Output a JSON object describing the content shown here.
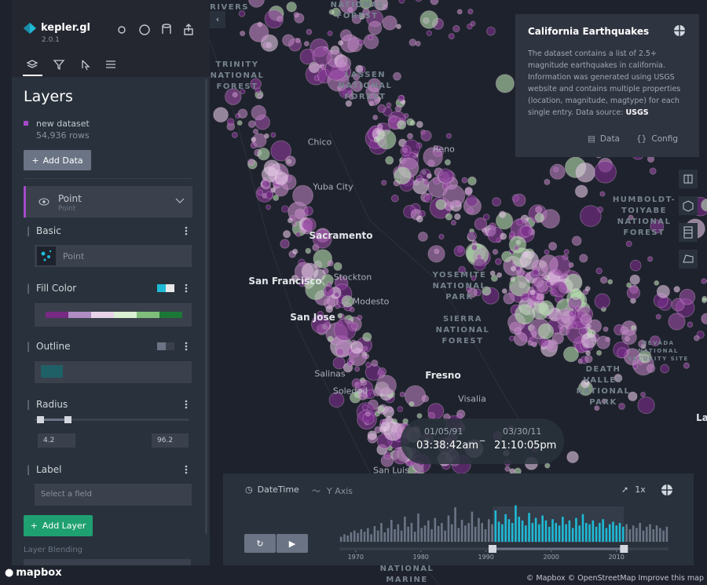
{
  "map": {
    "labels": [
      "SIX RIVERS",
      "NATIONAL FOREST",
      "TRINITY NATIONAL FOREST",
      "LASSEN NATIONAL FOREST",
      "Chico",
      "Yuba City",
      "Sacramento",
      "San Francisco",
      "Stockton",
      "Modesto",
      "YOSEMITE NATIONAL PARK",
      "SIERRA NATIONAL FOREST",
      "Fresno",
      "Visalia",
      "HUMBOLDT-TOIYABE NATIONAL FOREST",
      "NEVADA NATIONAL SECURITY SITE",
      "DEATH VALLEY NATIONAL PARK",
      "Salinas",
      "Soledad",
      "San Jose",
      "San Luis",
      "Reno",
      "NATIONAL MARINE",
      "Las Vegas"
    ]
  },
  "sidebar": {
    "brand": "kepler.gl",
    "version": "2.0.1",
    "title": "Layers",
    "dataset": {
      "name": "new dataset",
      "rows": "54,936 rows"
    },
    "add_data": "Add Data",
    "layer": {
      "name": "Point",
      "type": "Point",
      "basic": "Basic",
      "basic_value": "Point",
      "fill_color": "Fill Color",
      "outline": "Outline",
      "radius": "Radius",
      "radius_min": 4.2,
      "radius_max": 96.2,
      "label": "Label",
      "label_placeholder": "Select a field"
    },
    "add_layer": "Add Layer",
    "blending": "Layer Blending"
  },
  "info": {
    "title": "California Earthquakes",
    "description": "The dataset contains a list of 2.5+ magnitude earthquakes in california. Information was generated using USGS website and contains multiple properties (location, magnitude, magtype) for each single entry. Data source:",
    "source": "USGS",
    "data": "Data",
    "config": "Config"
  },
  "timeline": {
    "start_date": "01/05/91",
    "start_time": "03:38:42am",
    "end_date": "03/30/11",
    "end_time": "21:10:05pm",
    "field": "DateTime",
    "axis": "Y Axis",
    "speed": "1x",
    "xlim": [
      1967.5,
      2018
    ],
    "xticks": [
      1970,
      1980,
      1990,
      2000,
      2010
    ],
    "histogram": [
      8,
      12,
      10,
      15,
      18,
      14,
      20,
      16,
      22,
      12,
      25,
      18,
      30,
      15,
      22,
      35,
      20,
      28,
      18,
      40,
      24,
      30,
      16,
      45,
      22,
      26,
      34,
      20,
      38,
      25,
      30,
      18,
      42,
      28,
      55,
      22,
      35,
      26,
      30,
      48,
      24,
      38,
      30,
      20,
      36,
      28,
      50,
      32,
      28,
      44,
      36,
      30,
      58,
      40,
      34,
      26,
      46,
      30,
      38,
      28,
      42,
      34,
      24,
      36,
      30,
      26,
      40,
      28,
      34,
      22,
      38,
      26,
      44,
      30,
      28,
      34,
      24,
      30,
      36,
      22,
      28,
      32,
      26,
      30,
      24,
      28,
      20,
      26,
      22,
      30,
      18,
      24,
      28,
      20,
      26,
      22,
      18,
      24
    ]
  },
  "footer": {
    "logo": "mapbox",
    "attribution": "© Mapbox © OpenStreetMap Improve this map"
  }
}
